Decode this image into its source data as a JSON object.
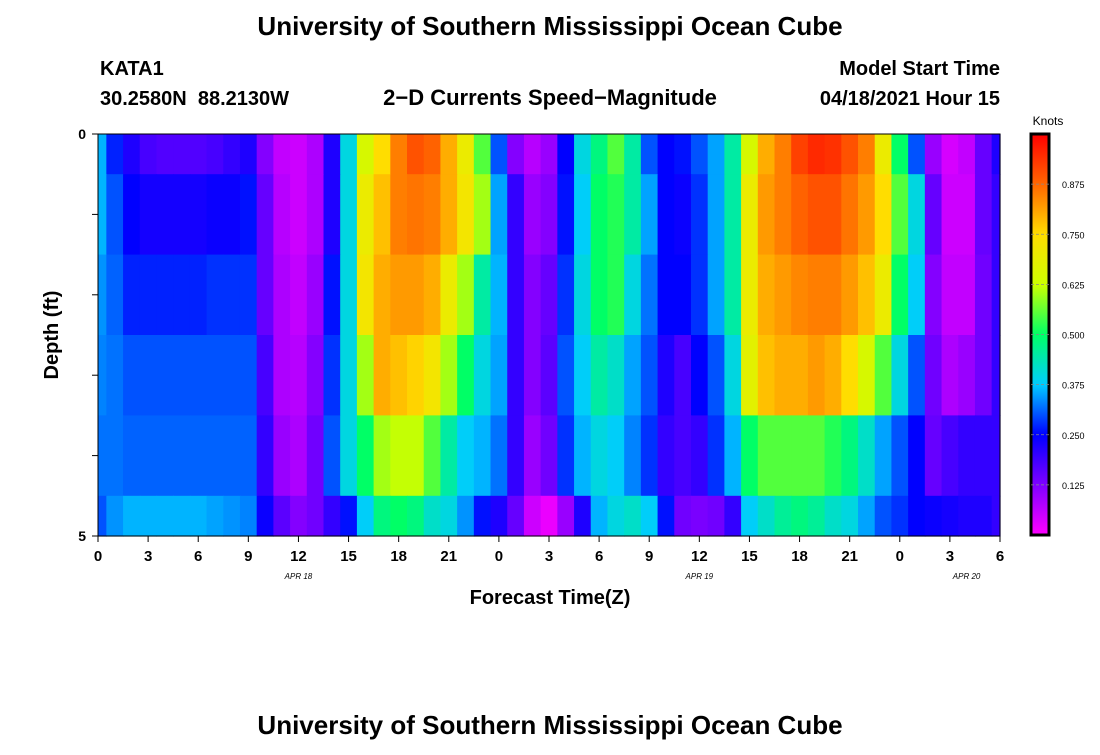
{
  "page": {
    "title_top": "University of Southern Mississippi Ocean Cube",
    "title_bottom": "University of Southern Mississippi Ocean Cube",
    "station_name": "KATA1",
    "station_coords": "30.2580N  88.2130W",
    "subtitle": "2−D Currents Speed−Magnitude",
    "model_start_label": "Model Start Time",
    "model_start_value": "04/18/2021 Hour 15"
  },
  "chart_data": {
    "type": "heatmap",
    "title": "2−D Currents Speed−Magnitude",
    "xlabel": "Forecast Time(Z)",
    "ylabel": "Depth (ft)",
    "colorbar_label": "Knots",
    "x_ticks": [
      "0",
      "3",
      "6",
      "9",
      "12",
      "15",
      "18",
      "21",
      "0",
      "3",
      "6",
      "9",
      "12",
      "15",
      "18",
      "21",
      "0",
      "3",
      "6"
    ],
    "x_range_hours": [
      0,
      54
    ],
    "date_labels": [
      {
        "text": "APR  18",
        "hour": 12
      },
      {
        "text": "APR  19",
        "hour": 36
      },
      {
        "text": "APR  20",
        "hour": 52
      }
    ],
    "y_ticks": [
      "0",
      "5"
    ],
    "y_range": [
      0,
      5
    ],
    "colorbar_ticks": [
      "0.875",
      "0.750",
      "0.625",
      "0.500",
      "0.375",
      "0.250",
      "0.125"
    ],
    "colorbar_range": [
      0,
      1
    ],
    "colorbar_stops": [
      "#ff00ff",
      "#7f00ff",
      "#0000ff",
      "#00ccff",
      "#00ff66",
      "#ccff00",
      "#ffdd00",
      "#ff6600",
      "#ff0000"
    ],
    "rows": [
      {
        "depth_from": 0,
        "depth_to": 0.5
      },
      {
        "depth_from": 0.5,
        "depth_to": 1.5
      },
      {
        "depth_from": 1.5,
        "depth_to": 2.5
      },
      {
        "depth_from": 2.5,
        "depth_to": 3.5
      },
      {
        "depth_from": 3.5,
        "depth_to": 4.5
      },
      {
        "depth_from": 4.5,
        "depth_to": 5
      }
    ],
    "hourly_speed_knots": [
      [
        0.36,
        0.27,
        0.22,
        0.18,
        0.17,
        0.17,
        0.17,
        0.18,
        0.2,
        0.22,
        0.12,
        0.06,
        0.05,
        0.08,
        0.22,
        0.4,
        0.65,
        0.75,
        0.85,
        0.9,
        0.88,
        0.8,
        0.7,
        0.55,
        0.3,
        0.12,
        0.07,
        0.1,
        0.25,
        0.4,
        0.48,
        0.55,
        0.45,
        0.3,
        0.25,
        0.26,
        0.3,
        0.35,
        0.45,
        0.65,
        0.8,
        0.85,
        0.92,
        0.95,
        0.94,
        0.9,
        0.85,
        0.7,
        0.5,
        0.3,
        0.1,
        0.04,
        0.06,
        0.15,
        0.22
      ],
      [
        0.36,
        0.3,
        0.25,
        0.23,
        0.23,
        0.23,
        0.23,
        0.24,
        0.24,
        0.26,
        0.15,
        0.07,
        0.05,
        0.08,
        0.22,
        0.4,
        0.7,
        0.78,
        0.85,
        0.86,
        0.85,
        0.8,
        0.72,
        0.6,
        0.35,
        0.2,
        0.1,
        0.12,
        0.26,
        0.38,
        0.5,
        0.52,
        0.45,
        0.35,
        0.25,
        0.24,
        0.28,
        0.35,
        0.45,
        0.7,
        0.82,
        0.85,
        0.88,
        0.9,
        0.9,
        0.86,
        0.82,
        0.75,
        0.55,
        0.4,
        0.15,
        0.05,
        0.05,
        0.15,
        0.2
      ],
      [
        0.34,
        0.31,
        0.27,
        0.27,
        0.27,
        0.27,
        0.27,
        0.28,
        0.28,
        0.28,
        0.15,
        0.08,
        0.06,
        0.1,
        0.26,
        0.4,
        0.72,
        0.8,
        0.82,
        0.82,
        0.8,
        0.7,
        0.6,
        0.45,
        0.36,
        0.2,
        0.12,
        0.15,
        0.28,
        0.4,
        0.5,
        0.52,
        0.4,
        0.32,
        0.25,
        0.25,
        0.28,
        0.35,
        0.45,
        0.7,
        0.8,
        0.82,
        0.84,
        0.85,
        0.85,
        0.82,
        0.78,
        0.7,
        0.5,
        0.38,
        0.12,
        0.06,
        0.06,
        0.14,
        0.2
      ],
      [
        0.33,
        0.32,
        0.3,
        0.3,
        0.3,
        0.3,
        0.3,
        0.3,
        0.3,
        0.3,
        0.18,
        0.08,
        0.07,
        0.12,
        0.28,
        0.4,
        0.6,
        0.8,
        0.78,
        0.76,
        0.72,
        0.6,
        0.5,
        0.4,
        0.35,
        0.2,
        0.12,
        0.16,
        0.3,
        0.38,
        0.45,
        0.42,
        0.35,
        0.3,
        0.22,
        0.18,
        0.25,
        0.3,
        0.4,
        0.68,
        0.78,
        0.8,
        0.8,
        0.82,
        0.8,
        0.75,
        0.65,
        0.55,
        0.4,
        0.3,
        0.14,
        0.08,
        0.1,
        0.14,
        0.2
      ],
      [
        0.32,
        0.32,
        0.31,
        0.31,
        0.31,
        0.31,
        0.31,
        0.31,
        0.31,
        0.31,
        0.2,
        0.1,
        0.08,
        0.14,
        0.3,
        0.4,
        0.5,
        0.6,
        0.62,
        0.62,
        0.55,
        0.45,
        0.38,
        0.36,
        0.32,
        0.2,
        0.1,
        0.14,
        0.28,
        0.36,
        0.4,
        0.38,
        0.33,
        0.28,
        0.2,
        0.18,
        0.2,
        0.28,
        0.36,
        0.5,
        0.55,
        0.55,
        0.55,
        0.55,
        0.52,
        0.48,
        0.42,
        0.35,
        0.3,
        0.25,
        0.15,
        0.18,
        0.2,
        0.2,
        0.2
      ],
      [
        0.3,
        0.34,
        0.36,
        0.36,
        0.36,
        0.36,
        0.36,
        0.35,
        0.34,
        0.33,
        0.24,
        0.16,
        0.12,
        0.14,
        0.2,
        0.26,
        0.38,
        0.48,
        0.5,
        0.48,
        0.42,
        0.4,
        0.34,
        0.26,
        0.22,
        0.15,
        0.05,
        0.02,
        0.1,
        0.22,
        0.36,
        0.4,
        0.42,
        0.38,
        0.26,
        0.14,
        0.13,
        0.14,
        0.2,
        0.38,
        0.42,
        0.46,
        0.48,
        0.46,
        0.42,
        0.4,
        0.35,
        0.3,
        0.28,
        0.25,
        0.24,
        0.23,
        0.22,
        0.22,
        0.2
      ]
    ]
  }
}
